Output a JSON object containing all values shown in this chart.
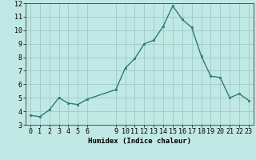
{
  "x": [
    0,
    1,
    2,
    3,
    4,
    5,
    6,
    9,
    10,
    11,
    12,
    13,
    14,
    15,
    16,
    17,
    18,
    19,
    20,
    21,
    22,
    23
  ],
  "y": [
    3.7,
    3.6,
    4.1,
    5.0,
    4.6,
    4.5,
    4.9,
    5.6,
    7.2,
    7.9,
    9.0,
    9.25,
    10.3,
    11.8,
    10.8,
    10.2,
    8.1,
    6.6,
    6.5,
    5.0,
    5.3,
    4.8
  ],
  "line_color": "#2e7d72",
  "marker": "s",
  "marker_size": 2.0,
  "bg_color": "#c0e8e4",
  "grid_color": "#a0c8c4",
  "xlabel": "Humidex (Indice chaleur)",
  "xtick_positions": [
    0,
    1,
    2,
    3,
    4,
    5,
    6,
    9,
    10,
    11,
    12,
    13,
    14,
    15,
    16,
    17,
    18,
    19,
    20,
    21,
    22,
    23
  ],
  "xtick_labels": [
    "0",
    "1",
    "2",
    "3",
    "4",
    "5",
    "6",
    "9",
    "10",
    "11",
    "12",
    "13",
    "14",
    "15",
    "16",
    "17",
    "18",
    "19",
    "20",
    "21",
    "22",
    "23"
  ],
  "ylim": [
    3,
    12
  ],
  "xlim": [
    -0.5,
    23.5
  ],
  "yticks": [
    3,
    4,
    5,
    6,
    7,
    8,
    9,
    10,
    11,
    12
  ],
  "xlabel_fontsize": 6.5,
  "tick_fontsize": 6.0,
  "line_width": 1.0
}
